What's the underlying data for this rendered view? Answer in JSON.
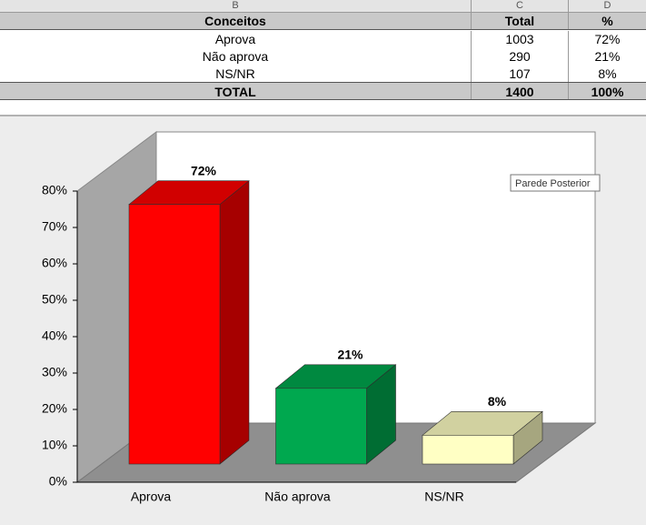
{
  "table": {
    "columns": [
      "B",
      "C",
      "D"
    ],
    "header": [
      "Conceitos",
      "Total",
      "%"
    ],
    "rows": [
      [
        "Aprova",
        "1003",
        "72%"
      ],
      [
        "Não aprova",
        "290",
        "21%"
      ],
      [
        "NS/NR",
        "107",
        "8%"
      ]
    ],
    "total": [
      "TOTAL",
      "1400",
      "100%"
    ]
  },
  "tooltip": "Parede Posterior",
  "chart_data": {
    "type": "bar3d",
    "categories": [
      "Aprova",
      "Não aprova",
      "NS/NR"
    ],
    "values": [
      72,
      21,
      8
    ],
    "value_labels": [
      "72%",
      "21%",
      "8%"
    ],
    "colors": [
      "#ff0000",
      "#00a84f",
      "#ffffc4"
    ],
    "ylim": [
      0,
      80
    ],
    "yticks": [
      {
        "value": 0,
        "label": "0%"
      },
      {
        "value": 10,
        "label": "10%"
      },
      {
        "value": 20,
        "label": "20%"
      },
      {
        "value": 30,
        "label": "30%"
      },
      {
        "value": 40,
        "label": "40%"
      },
      {
        "value": 50,
        "label": "50%"
      },
      {
        "value": 60,
        "label": "60%"
      },
      {
        "value": 70,
        "label": "70%"
      },
      {
        "value": 80,
        "label": "80%"
      }
    ]
  }
}
